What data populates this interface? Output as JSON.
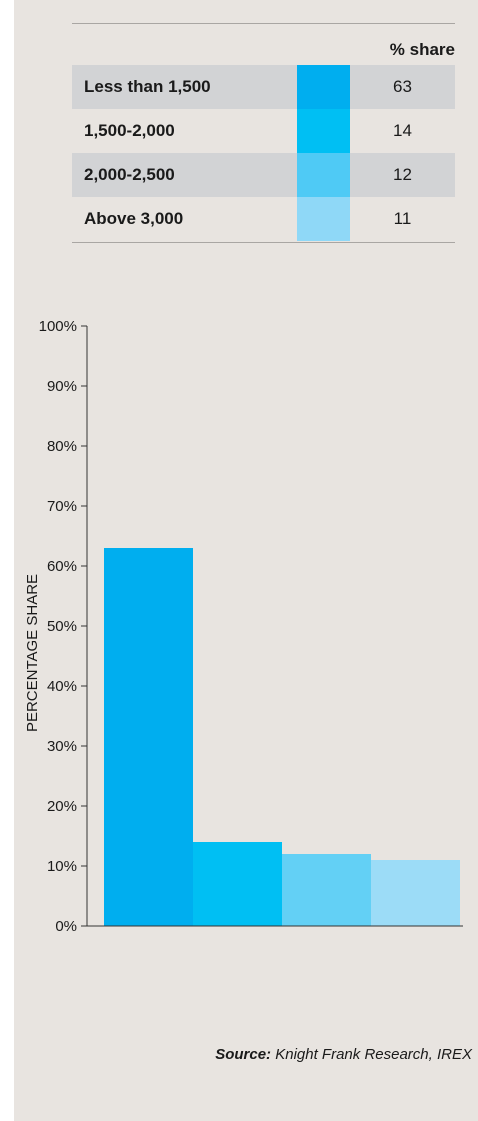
{
  "table": {
    "header": "% share",
    "rows": [
      {
        "label": "Less than 1,500",
        "value": "63",
        "color": "#00aeef"
      },
      {
        "label": "1,500-2,000",
        "value": "14",
        "color": "#00bff3"
      },
      {
        "label": "2,000-2,500",
        "value": "12",
        "color": "#4fcaf5"
      },
      {
        "label": "Above 3,000",
        "value": "11",
        "color": "#8fd8f7"
      }
    ]
  },
  "chart_data": {
    "type": "bar",
    "categories": [
      "Less than 1,500",
      "1,500-2,000",
      "2,000-2,500",
      "Above 3,000"
    ],
    "values": [
      63,
      14,
      12,
      11
    ],
    "colors": [
      "#00aeef",
      "#00bff3",
      "#63d0f5",
      "#9cdcf7"
    ],
    "ylabel": "PERCENTAGE SHARE",
    "ylim": [
      0,
      100
    ],
    "yticks": [
      "0%",
      "10%",
      "20%",
      "30%",
      "40%",
      "50%",
      "60%",
      "70%",
      "80%",
      "90%",
      "100%"
    ],
    "grid": false
  },
  "source": {
    "label": "Source:",
    "text": "Knight Frank Research, IREX"
  }
}
